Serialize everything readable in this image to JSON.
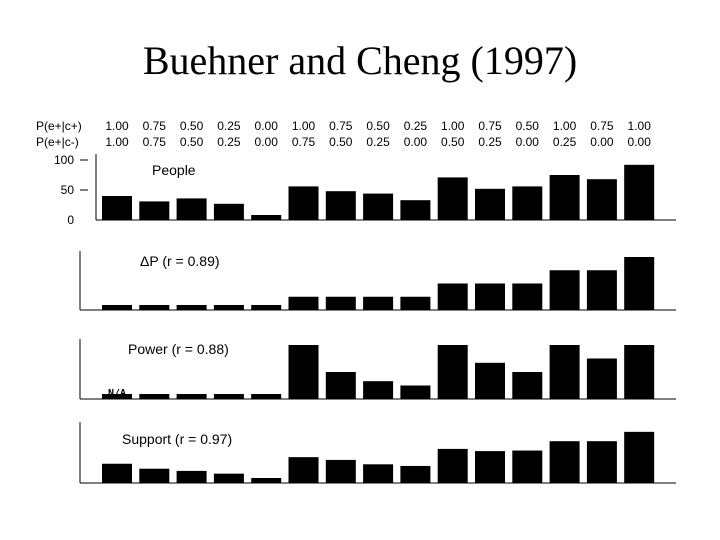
{
  "title": "Buehner and Cheng (1997)",
  "condition_labels": {
    "row1": "P(e+|c+)",
    "row2": "P(e+|c-)"
  },
  "conditions_c_plus": [
    "1.00",
    "0.75",
    "0.50",
    "0.25",
    "0.00",
    "1.00",
    "0.75",
    "0.50",
    "0.25",
    "1.00",
    "0.75",
    "0.50",
    "1.00",
    "0.75",
    "1.00"
  ],
  "conditions_c_minus": [
    "1.00",
    "0.75",
    "0.50",
    "0.25",
    "0.00",
    "0.75",
    "0.50",
    "0.25",
    "0.00",
    "0.50",
    "0.25",
    "0.00",
    "0.25",
    "0.00",
    "0.00"
  ],
  "colors": {
    "bar": "#000000",
    "axis": "#000000",
    "background": "#ffffff"
  },
  "chart_data": [
    {
      "type": "bar",
      "label": "People",
      "yticks": [
        "100",
        "50",
        "0"
      ],
      "ylim": [
        0,
        100
      ],
      "values": [
        40,
        31,
        36,
        27,
        8,
        56,
        48,
        44,
        33,
        71,
        52,
        56,
        75,
        68,
        92
      ]
    },
    {
      "type": "bar",
      "label": "P (r = 0.89)",
      "label_prefix_symbol": "Δ",
      "ylim": [
        0,
        1
      ],
      "values": [
        0.0,
        0.0,
        0.0,
        0.0,
        0.0,
        0.25,
        0.25,
        0.25,
        0.25,
        0.5,
        0.5,
        0.5,
        0.75,
        0.75,
        1.0
      ]
    },
    {
      "type": "bar",
      "label": "Power (r = 0.88)",
      "na_label": "N/A",
      "ylim": [
        0,
        1
      ],
      "values": [
        0.0,
        0.0,
        0.0,
        0.0,
        0.0,
        1.0,
        0.5,
        0.33,
        0.25,
        1.0,
        0.67,
        0.5,
        1.0,
        0.75,
        1.0
      ]
    },
    {
      "type": "bar",
      "label": "Support (r = 0.97)",
      "ylim": [
        0,
        1
      ],
      "values": [
        0.35,
        0.26,
        0.22,
        0.17,
        0.07,
        0.47,
        0.42,
        0.34,
        0.31,
        0.62,
        0.58,
        0.59,
        0.76,
        0.76,
        0.93
      ]
    }
  ]
}
